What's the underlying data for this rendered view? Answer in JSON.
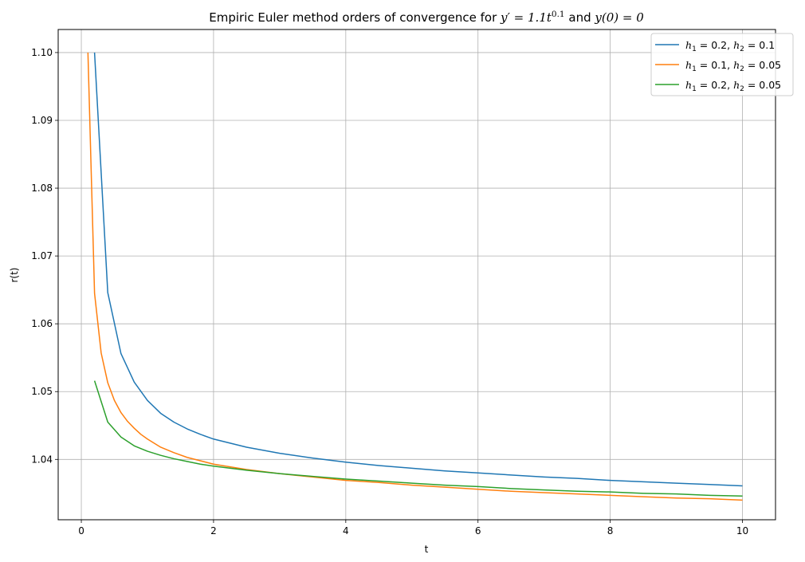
{
  "chart_data": {
    "type": "line",
    "title": "Empiric Euler method orders of convergence for y′ = 1.1t^0.1 and y(0) = 0",
    "title_parts": {
      "prefix": "Empiric Euler method orders of convergence for ",
      "eq1_lhs": "y′ = 1.1",
      "eq1_base": "t",
      "eq1_exp": "0.1",
      "connector": " and ",
      "eq2": "y(0) = 0"
    },
    "xlabel": "t",
    "ylabel": "r(t)",
    "xlim": [
      -0.35,
      10.5
    ],
    "ylim": [
      1.0311,
      1.1034
    ],
    "xticks": [
      0,
      2,
      4,
      6,
      8,
      10
    ],
    "xtick_labels": [
      "0",
      "2",
      "4",
      "6",
      "8",
      "10"
    ],
    "yticks": [
      1.04,
      1.05,
      1.06,
      1.07,
      1.08,
      1.09,
      1.1
    ],
    "ytick_labels": [
      "1.04",
      "1.05",
      "1.06",
      "1.07",
      "1.08",
      "1.09",
      "1.10"
    ],
    "grid": true,
    "legend_position": "top-right",
    "series": [
      {
        "name": "h1 = 0.2, h2 = 0.1",
        "label_parts": {
          "h1_value": "0.2",
          "h2_value": "0.1"
        },
        "color": "#1f77b4",
        "x": [
          0.2,
          0.4,
          0.6,
          0.8,
          1.0,
          1.2,
          1.4,
          1.6,
          1.8,
          2.0,
          2.5,
          3.0,
          3.5,
          4.0,
          4.5,
          5.0,
          5.5,
          6.0,
          6.5,
          7.0,
          7.5,
          8.0,
          8.5,
          9.0,
          9.5,
          10.0
        ],
        "y": [
          1.1,
          1.0646,
          1.0556,
          1.0514,
          1.0487,
          1.0468,
          1.0455,
          1.0445,
          1.0437,
          1.043,
          1.0418,
          1.0409,
          1.0402,
          1.0396,
          1.0391,
          1.0387,
          1.0383,
          1.038,
          1.0377,
          1.0374,
          1.0372,
          1.0369,
          1.0367,
          1.0365,
          1.0363,
          1.0361
        ]
      },
      {
        "name": "h1 = 0.1, h2 = 0.05",
        "label_parts": {
          "h1_value": "0.1",
          "h2_value": "0.05"
        },
        "color": "#ff7f0e",
        "x": [
          0.1,
          0.2,
          0.3,
          0.4,
          0.5,
          0.6,
          0.7,
          0.8,
          0.9,
          1.0,
          1.2,
          1.4,
          1.6,
          1.8,
          2.0,
          2.5,
          3.0,
          3.5,
          4.0,
          4.5,
          5.0,
          5.5,
          6.0,
          6.5,
          7.0,
          7.5,
          8.0,
          8.5,
          9.0,
          9.5,
          10.0
        ],
        "y": [
          1.1,
          1.0645,
          1.0557,
          1.0513,
          1.0487,
          1.0469,
          1.0456,
          1.0446,
          1.0437,
          1.043,
          1.0418,
          1.041,
          1.0403,
          1.0398,
          1.0393,
          1.0385,
          1.0379,
          1.0374,
          1.0369,
          1.0366,
          1.0362,
          1.0359,
          1.0356,
          1.0353,
          1.0351,
          1.0349,
          1.0347,
          1.0345,
          1.0343,
          1.0342,
          1.034
        ]
      },
      {
        "name": "h1 = 0.2, h2 = 0.05",
        "label_parts": {
          "h1_value": "0.2",
          "h2_value": "0.05"
        },
        "color": "#2ca02c",
        "x": [
          0.2,
          0.4,
          0.6,
          0.8,
          1.0,
          1.2,
          1.4,
          1.6,
          1.8,
          2.0,
          2.5,
          3.0,
          3.5,
          4.0,
          4.5,
          5.0,
          5.5,
          6.0,
          6.5,
          7.0,
          7.5,
          8.0,
          8.5,
          9.0,
          9.5,
          10.0
        ],
        "y": [
          1.0516,
          1.0455,
          1.0433,
          1.042,
          1.0412,
          1.0406,
          1.0401,
          1.0397,
          1.0393,
          1.039,
          1.0384,
          1.0379,
          1.0375,
          1.0371,
          1.0368,
          1.0365,
          1.0362,
          1.036,
          1.0357,
          1.0355,
          1.0353,
          1.0352,
          1.035,
          1.0349,
          1.0347,
          1.0346
        ]
      }
    ]
  }
}
